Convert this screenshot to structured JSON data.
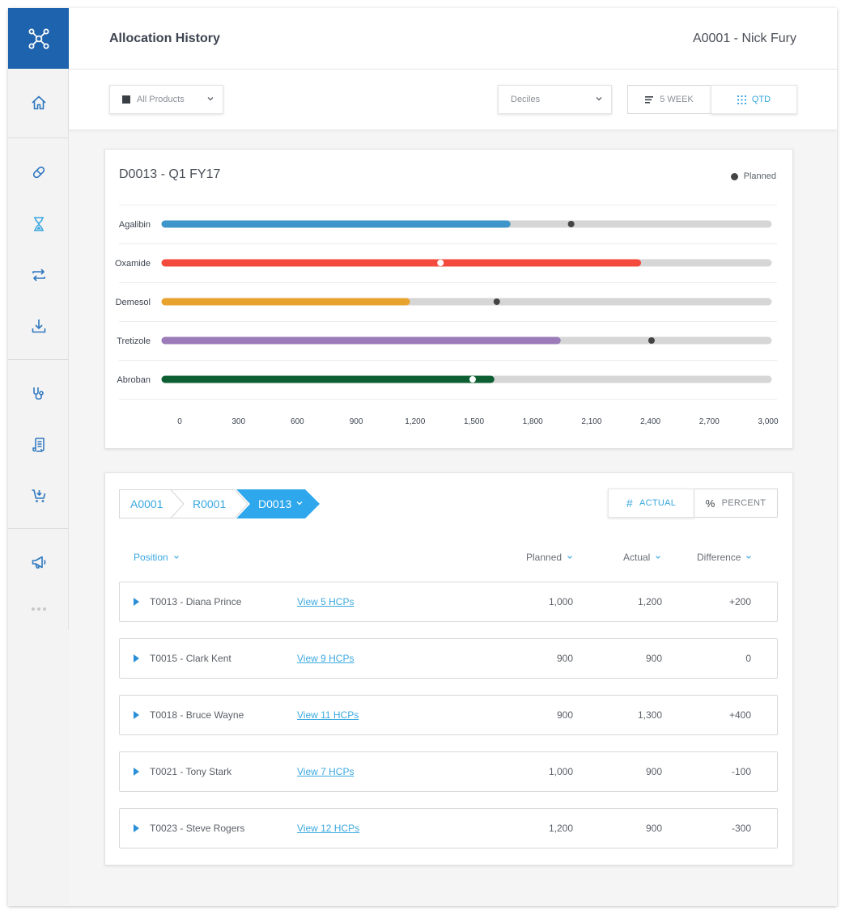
{
  "header": {
    "title": "Allocation History",
    "user": "A0001 - Nick Fury"
  },
  "sidebar": {
    "items": [
      {
        "icon": "home-icon"
      },
      {
        "icon": "pill-icon"
      },
      {
        "icon": "hourglass-icon"
      },
      {
        "icon": "transfer-icon"
      },
      {
        "icon": "download-icon"
      },
      {
        "icon": "stethoscope-icon"
      },
      {
        "icon": "scroll-icon"
      },
      {
        "icon": "cart-icon"
      },
      {
        "icon": "megaphone-icon"
      },
      {
        "icon": "more-icon"
      }
    ],
    "colors": {
      "brand": "#1e63ad",
      "accent": "#3aa8e0"
    }
  },
  "toolbar": {
    "products_select": "All Products",
    "deciles_select": "Deciles",
    "seg_5week": "5 WEEK",
    "seg_qtd": "QTD"
  },
  "chart_data": {
    "type": "bar",
    "title": "D0013 - Q1 FY17",
    "legend": [
      "Planned"
    ],
    "legend_position": "top-right",
    "orientation": "horizontal",
    "xlim": [
      0,
      3000
    ],
    "ticks": [
      "0",
      "300",
      "600",
      "900",
      "1,200",
      "1,500",
      "1,800",
      "2,100",
      "2,400",
      "2,700",
      "3,000"
    ],
    "categories": [
      "Agalibin",
      "Oxamide",
      "Demesol",
      "Tretizole",
      "Abroban"
    ],
    "values": [
      1700,
      2350,
      1200,
      1950,
      1620
    ],
    "planned": [
      2020,
      1370,
      1650,
      2420,
      1530
    ],
    "colors": [
      "#3d95c9",
      "#f44a3e",
      "#e8a22e",
      "#9b7bb8",
      "#0d5f31"
    ],
    "track_color": "#d6d6d6"
  },
  "table": {
    "breadcrumbs": [
      "A0001",
      "R0001",
      "D0013"
    ],
    "toggle_actual": "ACTUAL",
    "toggle_percent": "PERCENT",
    "columns": {
      "position": "Position",
      "planned": "Planned",
      "actual": "Actual",
      "difference": "Difference"
    },
    "rows": [
      {
        "position": "T0013 - Diana Prince",
        "link": "View 5 HCPs",
        "planned": "1,000",
        "actual": "1,200",
        "difference": "+200"
      },
      {
        "position": "T0015 - Clark Kent",
        "link": "View 9 HCPs",
        "planned": "900",
        "actual": "900",
        "difference": "0"
      },
      {
        "position": "T0018 - Bruce Wayne",
        "link": "View 11 HCPs",
        "planned": "900",
        "actual": "1,300",
        "difference": "+400"
      },
      {
        "position": "T0021 - Tony Stark",
        "link": "View 7 HCPs",
        "planned": "1,000",
        "actual": "900",
        "difference": "-100"
      },
      {
        "position": "T0023 - Steve Rogers",
        "link": "View 12 HCPs",
        "planned": "1,200",
        "actual": "900",
        "difference": "-300"
      }
    ]
  }
}
